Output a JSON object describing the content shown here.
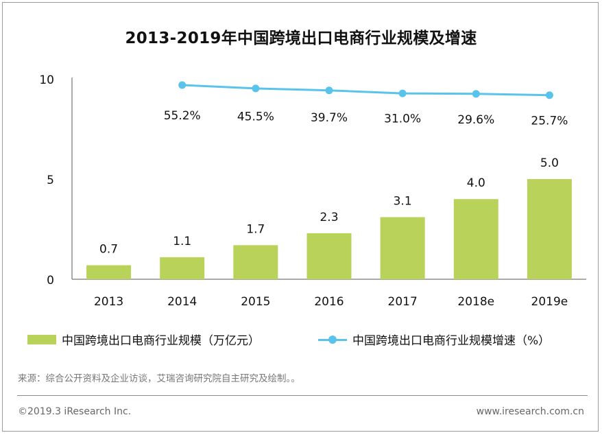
{
  "title": "2013-2019年中国跨境出口电商行业规模及增速",
  "colors": {
    "bar": "#b9d35a",
    "line": "#59c3ec",
    "axis": "#555555",
    "text": "#111111"
  },
  "chart_data": {
    "type": "bar",
    "categories": [
      "2013",
      "2014",
      "2015",
      "2016",
      "2017",
      "2018e",
      "2019e"
    ],
    "ylim": [
      0,
      10
    ],
    "yticks": [
      "0",
      "5",
      "10"
    ],
    "grid": false,
    "legend_position": "bottom",
    "series": [
      {
        "name": "中国跨境出口电商行业规模（万亿元）",
        "type": "bar",
        "values": [
          0.7,
          1.1,
          1.7,
          2.3,
          3.1,
          4.0,
          5.0
        ],
        "labels": [
          "0.7",
          "1.1",
          "1.7",
          "2.3",
          "3.1",
          "4.0",
          "5.0"
        ]
      },
      {
        "name": "中国跨境出口电商行业规模增速（%）",
        "type": "line",
        "x": [
          "2014",
          "2015",
          "2016",
          "2017",
          "2018e",
          "2019e"
        ],
        "values": [
          55.2,
          45.5,
          39.7,
          31.0,
          29.6,
          25.7
        ],
        "labels": [
          "55.2%",
          "45.5%",
          "39.7%",
          "31.0%",
          "29.6%",
          "25.7%"
        ]
      }
    ]
  },
  "legend": {
    "bar_label": "中国跨境出口电商行业规模（万亿元）",
    "line_label": "中国跨境出口电商行业规模增速（%）"
  },
  "source": "来源：综合公开资料及企业访谈，艾瑞咨询研究院自主研究及绘制。。",
  "footer": {
    "copyright": "©2019.3 iResearch Inc.",
    "url": "www.iresearch.com.cn"
  }
}
